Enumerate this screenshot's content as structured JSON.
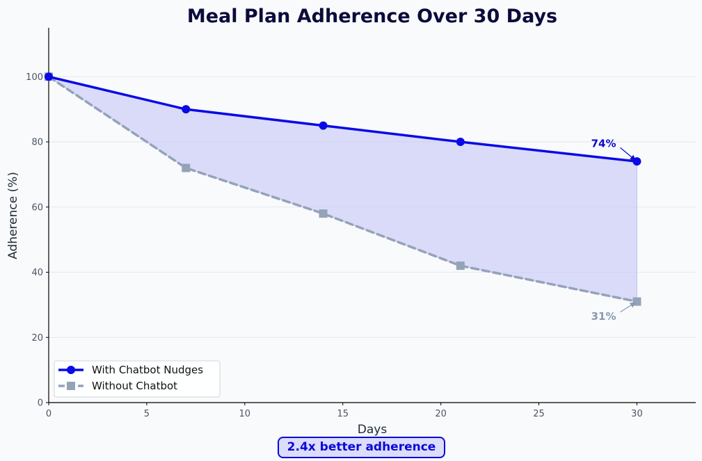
{
  "chart_data": {
    "type": "line",
    "title": "Meal Plan Adherence Over 30 Days",
    "xlabel": "Days",
    "ylabel": "Adherence (%)",
    "xlim": [
      0,
      33
    ],
    "ylim": [
      0,
      115
    ],
    "xticks": [
      0,
      5,
      10,
      15,
      20,
      25,
      30
    ],
    "yticks": [
      0,
      20,
      40,
      60,
      80,
      100
    ],
    "grid": "horizontal",
    "legend_position": "lower-left",
    "x": [
      0,
      7,
      14,
      21,
      30
    ],
    "series": [
      {
        "name": "With Chatbot Nudges",
        "values": [
          100,
          90,
          85,
          80,
          74
        ],
        "color": "#0a0ae6",
        "marker": "circle",
        "line_style": "solid"
      },
      {
        "name": "Without Chatbot",
        "values": [
          100,
          72,
          58,
          42,
          31
        ],
        "color": "#94a3b8",
        "marker": "square",
        "line_style": "dashed"
      }
    ],
    "shaded_region": {
      "between": [
        "With Chatbot Nudges",
        "Without Chatbot"
      ],
      "color": "#c7c7f7"
    },
    "annotations": [
      {
        "text": "74%",
        "x": 30,
        "y": 74,
        "text_x": 28.3,
        "text_y": 79.5,
        "color": "#0a0ad6"
      },
      {
        "text": "31%",
        "x": 30,
        "y": 31,
        "text_x": 28.3,
        "text_y": 26.5,
        "color": "#8a98b0"
      }
    ],
    "callout": "2.4x better adherence"
  }
}
